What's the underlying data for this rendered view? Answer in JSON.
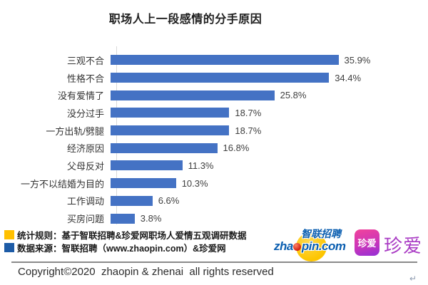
{
  "chart_data": {
    "type": "bar",
    "orientation": "horizontal",
    "title": "职场人上一段感情的分手原因",
    "categories": [
      "三观不合",
      "性格不合",
      "没有爱情了",
      "没分过手",
      "一方出轨/劈腿",
      "经济原因",
      "父母反对",
      "一方不以结婚为目的",
      "工作调动",
      "买房问题"
    ],
    "values": [
      35.9,
      34.4,
      25.8,
      18.7,
      18.7,
      16.8,
      11.3,
      10.3,
      6.6,
      3.8
    ],
    "value_labels": [
      "35.9%",
      "34.4%",
      "25.8%",
      "18.7%",
      "18.7%",
      "16.8%",
      "11.3%",
      "10.3%",
      "6.6%",
      "3.8%"
    ],
    "xlim": [
      0,
      40
    ],
    "bar_color": "#4472C4",
    "axis_color": "#d9d9d9",
    "grid": false,
    "legend": "none",
    "data_labels": true
  },
  "notes": [
    {
      "marker_color": "#FFC000",
      "text": "统计规则：基于智联招聘&珍爱网职场人爱情五观调研数据"
    },
    {
      "marker_color": "#1D5BA6",
      "text": "数据来源：智联招聘（www.zhaopin.com）&珍爱网"
    }
  ],
  "logos": {
    "zhaopin": {
      "brand_cn": "智联招聘",
      "domain_pre": "zha",
      "domain_post": "pin.com"
    },
    "zhenai": {
      "icon_text": "珍爱",
      "wordmark": "珍爱"
    }
  },
  "footer": {
    "copyright": "Copyright©2020  zhaopin & zhenai  all rights reserved",
    "return_mark": "↵"
  }
}
